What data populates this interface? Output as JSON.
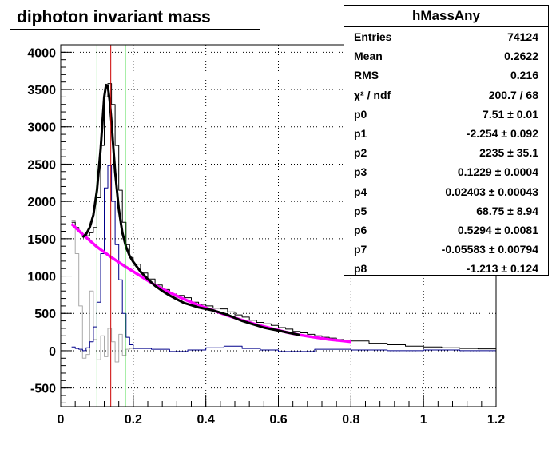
{
  "title": "diphoton invariant mass",
  "stats": {
    "name": "hMassAny",
    "rows": [
      {
        "k": "Entries",
        "v": "74124"
      },
      {
        "k": "Mean",
        "v": "0.2622"
      },
      {
        "k": "RMS",
        "v": "0.216"
      },
      {
        "k": "χ² / ndf",
        "v": "200.7 / 68"
      },
      {
        "k": "p0",
        "v": "7.51 ± 0.01"
      },
      {
        "k": "p1",
        "v": "-2.254 ± 0.092"
      },
      {
        "k": "p2",
        "v": "2235 ± 35.1"
      },
      {
        "k": "p3",
        "v": "0.1229 ± 0.0004"
      },
      {
        "k": "p4",
        "v": "0.02403 ± 0.00043"
      },
      {
        "k": "p5",
        "v": "68.75 ± 8.94"
      },
      {
        "k": "p6",
        "v": "0.5294 ± 0.0081"
      },
      {
        "k": "p7",
        "v": "-0.05583 ± 0.00794"
      },
      {
        "k": "p8",
        "v": "-1.213 ± 0.124"
      }
    ]
  },
  "chart_data": {
    "type": "line",
    "title": "diphoton invariant mass",
    "xlabel": "",
    "ylabel": "",
    "xlim": [
      0,
      1.2
    ],
    "ylim": [
      -750,
      4100
    ],
    "xticks": [
      "0",
      "0.2",
      "0.4",
      "0.6",
      "0.8",
      "1",
      "1.2"
    ],
    "yticks": [
      "-500",
      "0",
      "500",
      "1000",
      "1500",
      "2000",
      "2500",
      "3000",
      "3500",
      "4000"
    ],
    "grid": true,
    "colors": {
      "data": "#000000",
      "fit": "#000000",
      "background_fit": "#ff00ff",
      "signal": "#00008b",
      "residual": "#aaaaaa",
      "window_lines": "#00cc00",
      "peak_line": "#cc0000"
    },
    "vertical_lines": [
      {
        "x": 0.1,
        "color": "green"
      },
      {
        "x": 0.138,
        "color": "red"
      },
      {
        "x": 0.178,
        "color": "green"
      }
    ],
    "series": [
      {
        "kind": "histogram",
        "x": [
          0.03,
          0.04,
          0.05,
          0.06,
          0.07,
          0.08,
          0.09,
          0.1,
          0.11,
          0.12,
          0.13,
          0.14,
          0.15,
          0.16,
          0.17,
          0.18,
          0.19,
          0.2,
          0.22,
          0.24,
          0.26,
          0.28,
          0.3,
          0.32,
          0.34,
          0.36,
          0.38,
          0.4,
          0.42,
          0.44,
          0.46,
          0.48,
          0.5,
          0.52,
          0.54,
          0.56,
          0.58,
          0.6,
          0.62,
          0.64,
          0.66,
          0.68,
          0.7,
          0.72,
          0.74,
          0.76,
          0.78,
          0.8,
          0.85,
          0.9,
          0.95,
          1.0,
          1.05,
          1.1,
          1.15,
          1.2
        ],
        "values": [
          1720,
          1650,
          1590,
          1560,
          1540,
          1580,
          1650,
          2050,
          2750,
          3400,
          3580,
          3300,
          2750,
          2150,
          1720,
          1420,
          1250,
          1160,
          1040,
          960,
          880,
          820,
          760,
          740,
          710,
          650,
          620,
          600,
          570,
          560,
          520,
          480,
          450,
          410,
          380,
          360,
          340,
          310,
          290,
          260,
          240,
          220,
          200,
          180,
          170,
          150,
          140,
          130,
          100,
          80,
          60,
          50,
          40,
          30,
          25,
          20
        ]
      },
      {
        "kind": "fit_total",
        "x": [
          0.06,
          0.07,
          0.08,
          0.09,
          0.1,
          0.11,
          0.115,
          0.12,
          0.125,
          0.13,
          0.135,
          0.14,
          0.145,
          0.15,
          0.16,
          0.17,
          0.18,
          0.19,
          0.2,
          0.22,
          0.24,
          0.26,
          0.28,
          0.3,
          0.32,
          0.34,
          0.36,
          0.38,
          0.4,
          0.42,
          0.44,
          0.46,
          0.48,
          0.5,
          0.52,
          0.54,
          0.56,
          0.58,
          0.6,
          0.62,
          0.64,
          0.66
        ],
        "values": [
          1520,
          1560,
          1650,
          1820,
          2150,
          2700,
          3050,
          3400,
          3560,
          3540,
          3350,
          3060,
          2720,
          2400,
          1900,
          1580,
          1390,
          1270,
          1190,
          1060,
          960,
          870,
          800,
          740,
          690,
          640,
          610,
          580,
          560,
          540,
          510,
          480,
          440,
          400,
          370,
          340,
          310,
          290,
          270,
          250,
          230,
          210
        ]
      },
      {
        "kind": "fit_background",
        "x": [
          0.03,
          0.06,
          0.1,
          0.14,
          0.18,
          0.22,
          0.26,
          0.3,
          0.34,
          0.38,
          0.42,
          0.46,
          0.5,
          0.54,
          0.58,
          0.62,
          0.66,
          0.7,
          0.74,
          0.78,
          0.8
        ],
        "values": [
          1700,
          1560,
          1390,
          1250,
          1120,
          1000,
          880,
          780,
          690,
          610,
          540,
          470,
          410,
          350,
          300,
          250,
          210,
          180,
          150,
          130,
          120
        ]
      },
      {
        "kind": "signal_histogram",
        "x": [
          0.03,
          0.04,
          0.05,
          0.06,
          0.07,
          0.08,
          0.09,
          0.1,
          0.11,
          0.12,
          0.13,
          0.14,
          0.15,
          0.16,
          0.17,
          0.18,
          0.19,
          0.2,
          0.25,
          0.3,
          0.35,
          0.4,
          0.45,
          0.5,
          0.55,
          0.6,
          0.7,
          0.8,
          0.9,
          1.0,
          1.1,
          1.2
        ],
        "values": [
          50,
          30,
          20,
          0,
          40,
          120,
          320,
          650,
          1300,
          2180,
          2480,
          2000,
          1420,
          950,
          500,
          180,
          80,
          30,
          20,
          -10,
          10,
          40,
          60,
          30,
          10,
          -10,
          20,
          10,
          0,
          10,
          0,
          0
        ]
      },
      {
        "kind": "residual_histogram",
        "x": [
          0.03,
          0.04,
          0.05,
          0.06,
          0.07,
          0.08,
          0.09,
          0.1,
          0.11,
          0.12,
          0.13,
          0.14,
          0.15,
          0.16,
          0.17,
          0.18,
          0.19,
          0.2
        ],
        "values": [
          1750,
          1300,
          600,
          -100,
          -50,
          800,
          150,
          -120,
          200,
          -80,
          300,
          120,
          -150,
          220,
          -60,
          20,
          30,
          0
        ]
      }
    ]
  }
}
